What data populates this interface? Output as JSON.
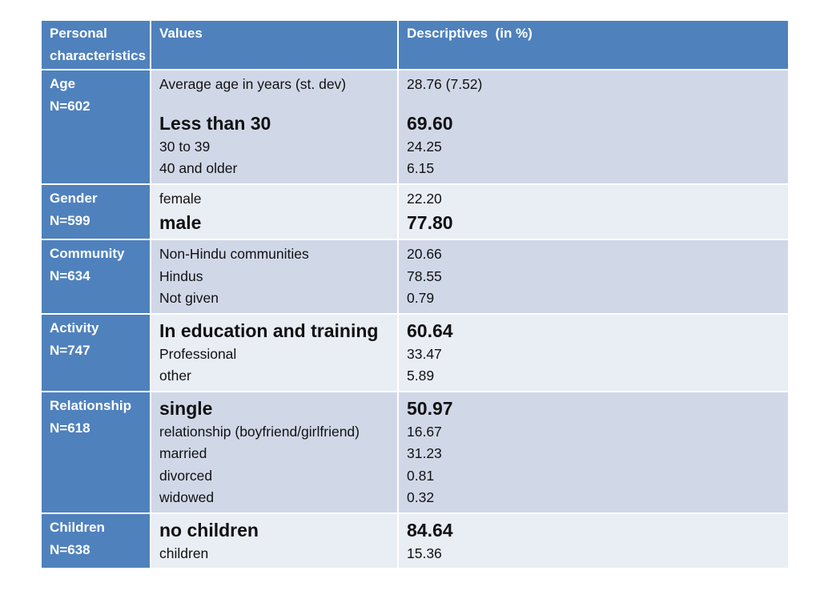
{
  "header": {
    "col1": [
      "Personal",
      "characteristics"
    ],
    "col2": "Values",
    "col3": "Descriptives  (in %)"
  },
  "rows": [
    {
      "label": "Age",
      "n": "N=602",
      "items": [
        {
          "value": "Average age in years (st. dev)",
          "desc": "28.76 (7.52)",
          "emphasis": false
        },
        {
          "value": "Less than 30",
          "desc": "69.60",
          "emphasis": true
        },
        {
          "value": "30 to 39",
          "desc": "24.25",
          "emphasis": false
        },
        {
          "value": "40 and older",
          "desc": "6.15",
          "emphasis": false
        }
      ]
    },
    {
      "label": "Gender",
      "n": "N=599",
      "items": [
        {
          "value": "female",
          "desc": "22.20",
          "emphasis": false
        },
        {
          "value": "male",
          "desc": "77.80",
          "emphasis": true
        }
      ]
    },
    {
      "label": "Community",
      "n": "N=634",
      "items": [
        {
          "value": "Non-Hindu communities",
          "desc": "20.66",
          "emphasis": false
        },
        {
          "value": "Hindus",
          "desc": "78.55",
          "emphasis": false
        },
        {
          "value": "Not given",
          "desc": "0.79",
          "emphasis": false
        }
      ]
    },
    {
      "label": "Activity",
      "n": "N=747",
      "items": [
        {
          "value": "In education and training",
          "desc": "60.64",
          "emphasis": true
        },
        {
          "value": "Professional",
          "desc": "33.47",
          "emphasis": false
        },
        {
          "value": "other",
          "desc": "5.89",
          "emphasis": false
        }
      ]
    },
    {
      "label": "Relationship",
      "n": "N=618",
      "items": [
        {
          "value": "single",
          "desc": "50.97",
          "emphasis": true
        },
        {
          "value": "relationship (boyfriend/girlfriend)",
          "desc": "16.67",
          "emphasis": false
        },
        {
          "value": "married",
          "desc": "31.23",
          "emphasis": false
        },
        {
          "value": "divorced",
          "desc": "0.81",
          "emphasis": false
        },
        {
          "value": "widowed",
          "desc": "0.32",
          "emphasis": false
        }
      ]
    },
    {
      "label": "Children",
      "n": "N=638",
      "items": [
        {
          "value": "no children",
          "desc": "84.64",
          "emphasis": true
        },
        {
          "value": "children",
          "desc": "15.36",
          "emphasis": false
        }
      ]
    }
  ],
  "colors": {
    "header_bg": "#4f81bd",
    "row_dark": "#d0d8e8",
    "row_light": "#e9edf4",
    "header_text": "#ffffff",
    "body_text": "#111111"
  }
}
